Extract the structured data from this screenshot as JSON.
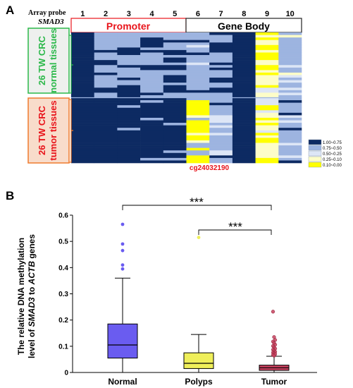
{
  "panel_a": {
    "label": "A",
    "probe_title": "Array probe",
    "gene": "SMAD3",
    "columns": [
      "1",
      "2",
      "3",
      "4",
      "5",
      "6",
      "7",
      "8",
      "9",
      "10"
    ],
    "promoter_label": "Promoter",
    "genebody_label": "Gene Body",
    "normal_label_1": "26 TW CRC",
    "normal_label_2": "normal tissues",
    "tumor_label_1": "26 TW CRC",
    "tumor_label_2": "tumor tissues",
    "highlight_probe": "cg24032190",
    "legend": [
      {
        "label": "1.00~0.75",
        "color": "#0d2a62"
      },
      {
        "label": "0.75~0.50",
        "color": "#9db4e0"
      },
      {
        "label": "0.50~0.25",
        "color": "#dde6f6"
      },
      {
        "label": "0.25~0.10",
        "color": "#fdfdc8"
      },
      {
        "label": "0.10~0.00",
        "color": "#ffff00"
      }
    ],
    "colors": {
      "promoter": "#e8141b",
      "normal": "#2bb84a",
      "tumor": "#ef7b2e"
    }
  },
  "panel_b": {
    "label": "B",
    "ylabel_1": "The relative DNA methylation",
    "ylabel_2_pre": "level of ",
    "ylabel_2_gene": "SMAD3",
    "ylabel_2_mid": " to ",
    "ylabel_2_gene2": "ACTB",
    "ylabel_2_post": " genes",
    "sig1": "***",
    "sig2": "***"
  },
  "chart_data": {
    "type": "box",
    "categories": [
      "Normal",
      "Polyps",
      "Tumor"
    ],
    "ylim": [
      0,
      0.6
    ],
    "yticks": [
      "0",
      "0.1",
      "0.2",
      "0.3",
      "0.4",
      "0.5",
      "0.6"
    ],
    "boxes": [
      {
        "name": "Normal",
        "whisker_low": 0.0,
        "q1": 0.055,
        "median": 0.105,
        "q3": 0.185,
        "whisker_high": 0.36,
        "outliers": [
          0.565,
          0.49,
          0.465,
          0.41,
          0.395
        ],
        "color": "#6a5cf0"
      },
      {
        "name": "Polyps",
        "whisker_low": 0.0,
        "q1": 0.015,
        "median": 0.035,
        "q3": 0.075,
        "whisker_high": 0.145,
        "outliers": [
          0.515
        ],
        "color": "#efef5a"
      },
      {
        "name": "Tumor",
        "whisker_low": 0.0,
        "q1": 0.008,
        "median": 0.018,
        "q3": 0.028,
        "whisker_high": 0.062,
        "outliers": [
          0.232,
          0.135,
          0.124,
          0.118,
          0.112,
          0.106,
          0.101,
          0.096,
          0.091,
          0.087,
          0.083,
          0.079,
          0.076,
          0.073,
          0.07,
          0.067,
          0.064
        ],
        "color": "#c8415f"
      }
    ],
    "comparisons": [
      "Normal vs Tumor: ***",
      "Polyps vs Tumor: ***"
    ]
  }
}
